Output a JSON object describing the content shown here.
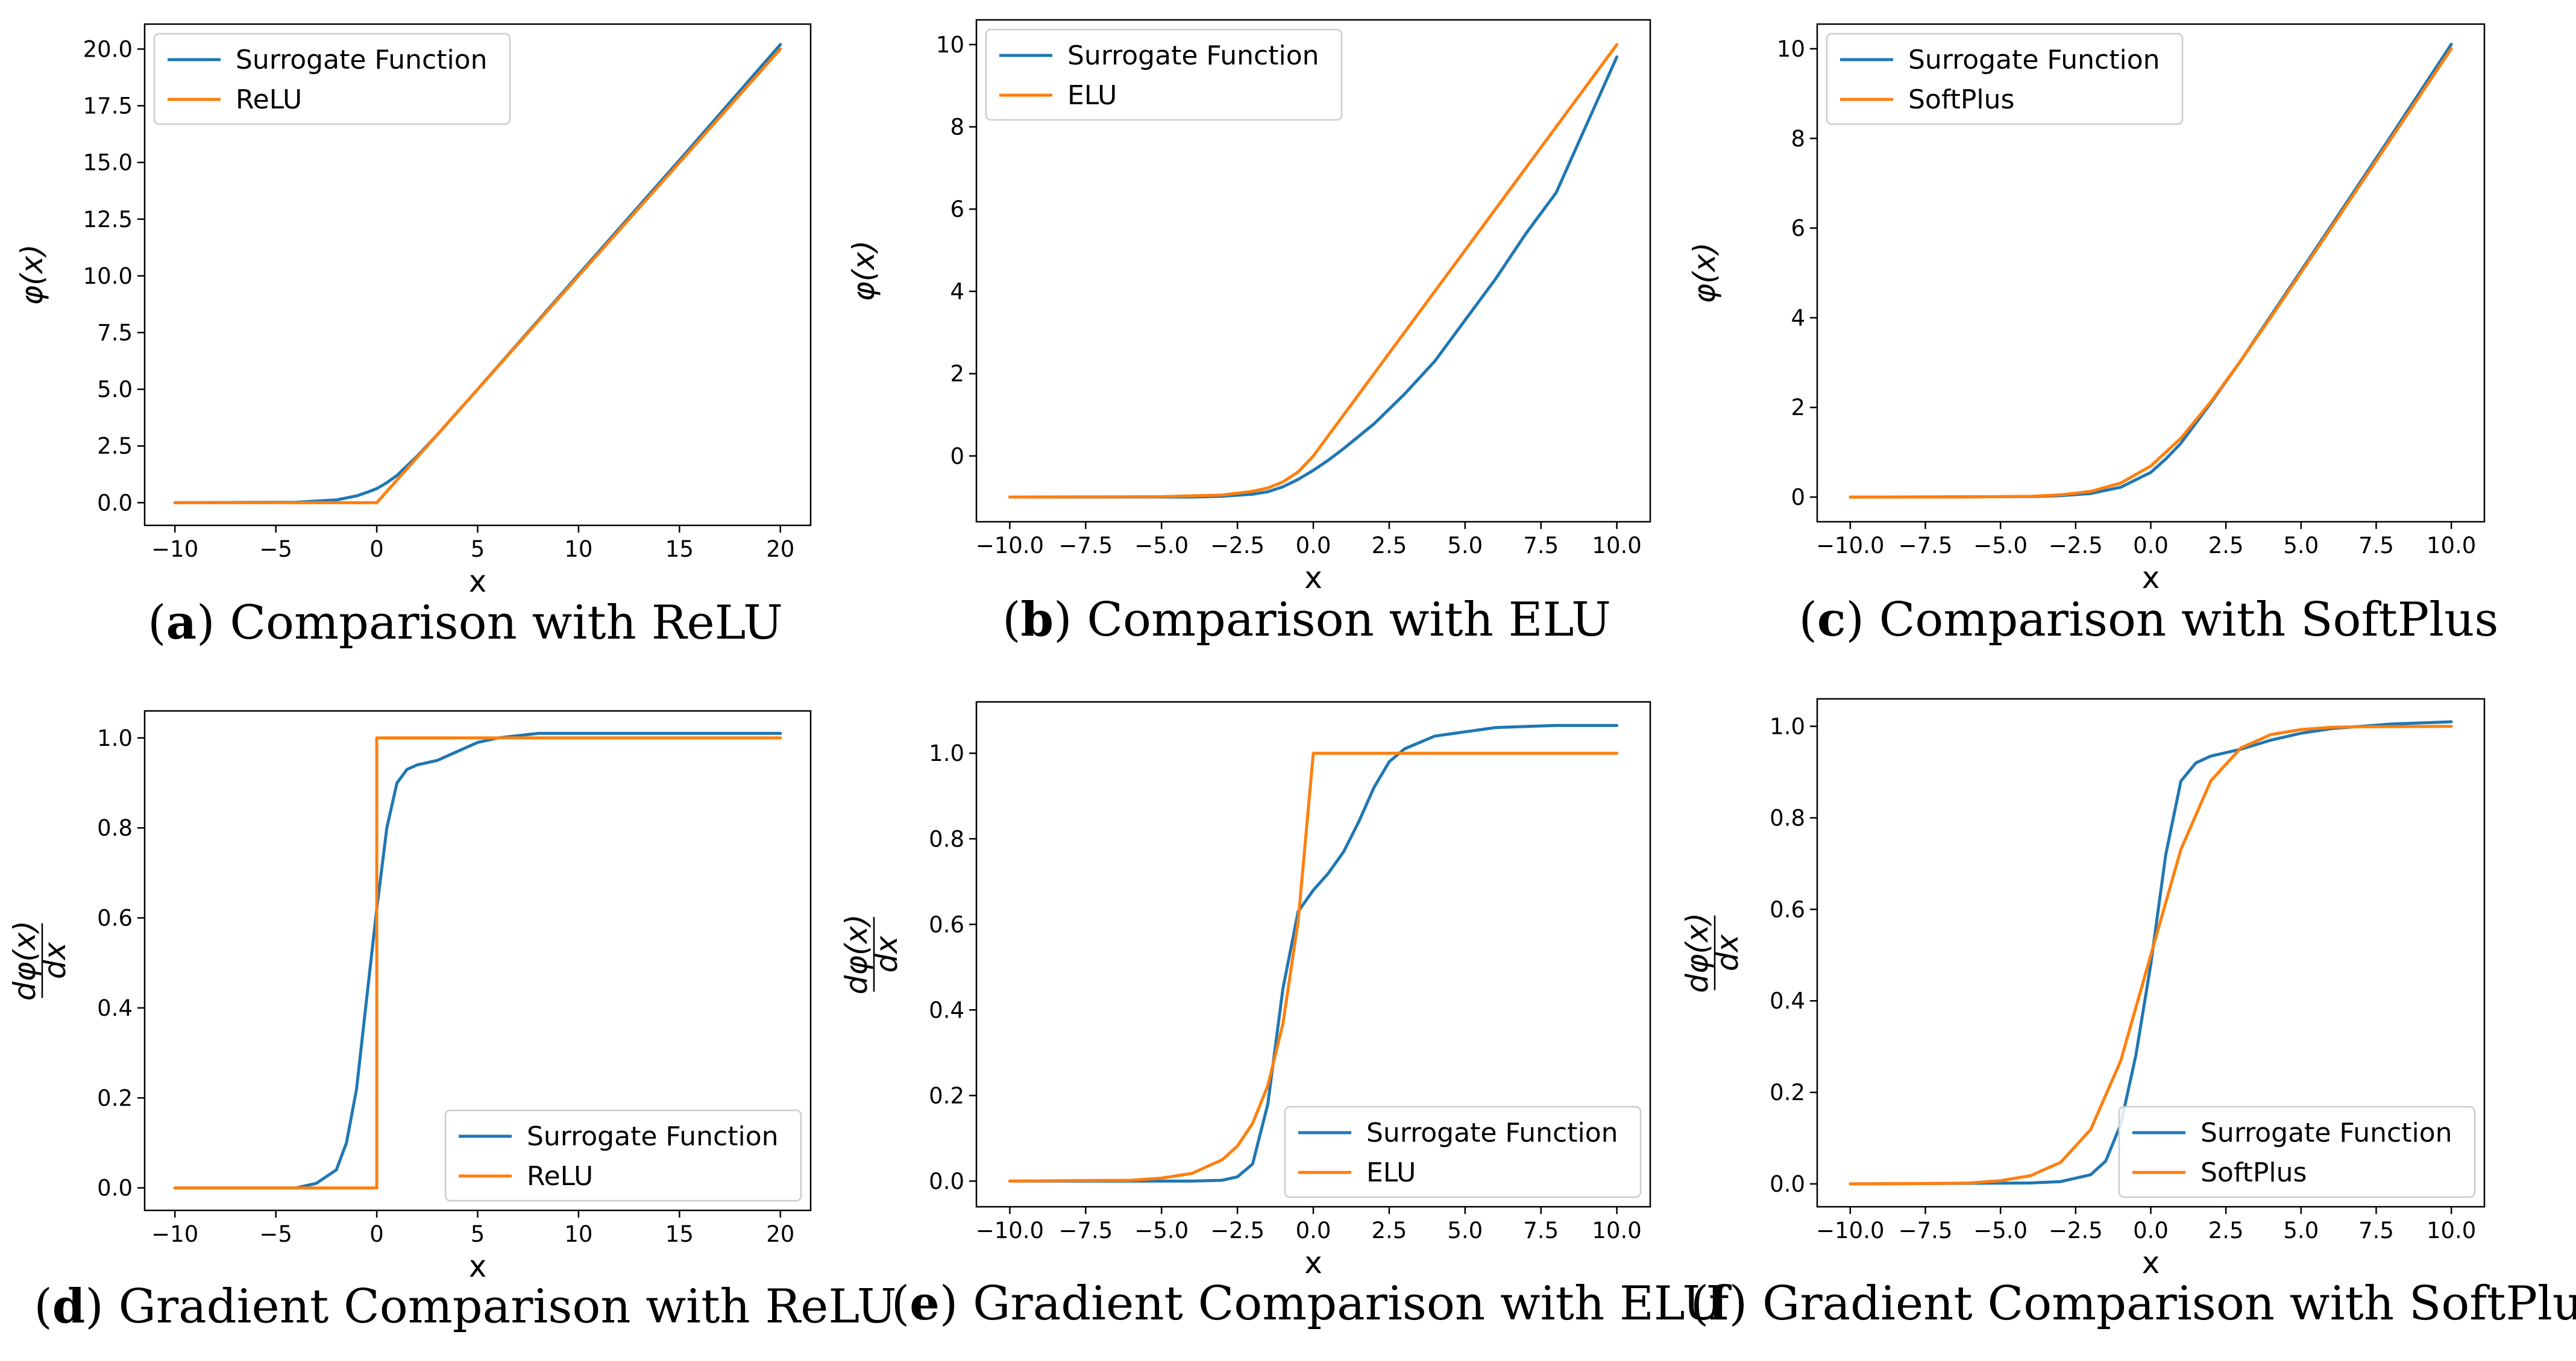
{
  "colors": {
    "surrogate": "#1f77b4",
    "reference": "#ff7f0e",
    "axis": "#000000"
  },
  "chart_data": [
    {
      "type": "line",
      "letter": "a",
      "caption": "Comparison with ReLU",
      "xlabel": "x",
      "ylabel": "φ(x)",
      "xlim": [
        -11.5,
        21.5
      ],
      "ylim": [
        -1.0,
        21.1
      ],
      "xticks": [
        -10,
        -5,
        0,
        5,
        10,
        15,
        20
      ],
      "xtick_labels": [
        "−10",
        "−5",
        "0",
        "5",
        "10",
        "15",
        "20"
      ],
      "yticks": [
        0,
        2.5,
        5,
        7.5,
        10,
        12.5,
        15,
        17.5,
        20
      ],
      "ytick_labels": [
        "0.0",
        "2.5",
        "5.0",
        "7.5",
        "10.0",
        "12.5",
        "15.0",
        "17.5",
        "20.0"
      ],
      "legend_position": "top-left",
      "series": [
        {
          "name": "Surrogate Function",
          "color_key": "surrogate",
          "x": [
            -10,
            -4,
            -2,
            -1,
            -0.5,
            0,
            0.5,
            1,
            2,
            3,
            5,
            10,
            15,
            20
          ],
          "y": [
            0,
            0.02,
            0.12,
            0.3,
            0.45,
            0.62,
            0.88,
            1.2,
            2.05,
            3.0,
            5.0,
            10.06,
            15.1,
            20.2
          ]
        },
        {
          "name": "ReLU",
          "color_key": "reference",
          "x": [
            -10,
            0,
            20
          ],
          "y": [
            0,
            0,
            20
          ]
        }
      ]
    },
    {
      "type": "line",
      "letter": "b",
      "caption": "Comparison with ELU",
      "xlabel": "x",
      "ylabel": "φ(x)",
      "xlim": [
        -11.1,
        11.1
      ],
      "ylim": [
        -1.6,
        10.6
      ],
      "xticks": [
        -10,
        -7.5,
        -5,
        -2.5,
        0,
        2.5,
        5,
        7.5,
        10
      ],
      "xtick_labels": [
        "−10.0",
        "−7.5",
        "−5.0",
        "−2.5",
        "0.0",
        "2.5",
        "5.0",
        "7.5",
        "10.0"
      ],
      "yticks": [
        0,
        2,
        4,
        6,
        8,
        10
      ],
      "ytick_labels": [
        "0",
        "2",
        "4",
        "6",
        "8",
        "10"
      ],
      "legend_position": "top-left",
      "series": [
        {
          "name": "Surrogate Function",
          "color_key": "surrogate",
          "x": [
            -10,
            -4,
            -3,
            -2,
            -1.5,
            -1,
            -0.5,
            0,
            0.5,
            1,
            2,
            3,
            4,
            5,
            6,
            7,
            8,
            10
          ],
          "y": [
            -1,
            -1,
            -0.98,
            -0.93,
            -0.87,
            -0.75,
            -0.57,
            -0.35,
            -0.1,
            0.18,
            0.78,
            1.5,
            2.3,
            3.3,
            4.3,
            5.4,
            6.4,
            9.7
          ]
        },
        {
          "name": "ELU",
          "color_key": "reference",
          "x": [
            -10,
            -5,
            -3,
            -2,
            -1.5,
            -1,
            -0.5,
            0,
            10
          ],
          "y": [
            -1,
            -0.99,
            -0.95,
            -0.86,
            -0.78,
            -0.63,
            -0.39,
            0,
            10
          ]
        }
      ]
    },
    {
      "type": "line",
      "letter": "c",
      "caption": "Comparison with SoftPlus",
      "xlabel": "x",
      "ylabel": "φ(x)",
      "xlim": [
        -11.1,
        11.1
      ],
      "ylim": [
        -0.55,
        10.55
      ],
      "xticks": [
        -10,
        -7.5,
        -5,
        -2.5,
        0,
        2.5,
        5,
        7.5,
        10
      ],
      "xtick_labels": [
        "−10.0",
        "−7.5",
        "−5.0",
        "−2.5",
        "0.0",
        "2.5",
        "5.0",
        "7.5",
        "10.0"
      ],
      "yticks": [
        0,
        2,
        4,
        6,
        8,
        10
      ],
      "ytick_labels": [
        "0",
        "2",
        "4",
        "6",
        "8",
        "10"
      ],
      "legend_position": "top-left",
      "series": [
        {
          "name": "Surrogate Function",
          "color_key": "surrogate",
          "x": [
            -10,
            -4,
            -3,
            -2,
            -1,
            0,
            0.5,
            1,
            2,
            3,
            4,
            6,
            8,
            10
          ],
          "y": [
            0,
            0.01,
            0.03,
            0.08,
            0.22,
            0.55,
            0.85,
            1.2,
            2.1,
            3.05,
            4.05,
            6.05,
            8.06,
            10.1
          ]
        },
        {
          "name": "SoftPlus",
          "color_key": "reference",
          "x": [
            -10,
            -6,
            -4,
            -3,
            -2,
            -1,
            0,
            1,
            2,
            3,
            4,
            6,
            8,
            10
          ],
          "y": [
            0,
            0.0025,
            0.018,
            0.049,
            0.127,
            0.313,
            0.693,
            1.313,
            2.127,
            3.049,
            4.018,
            6.0025,
            8.0,
            10.0
          ]
        }
      ]
    },
    {
      "type": "line",
      "letter": "d",
      "caption": "Gradient Comparison with ReLU",
      "xlabel": "x",
      "ylabel_num": "dφ(x)",
      "ylabel_den": "dx",
      "xlim": [
        -11.5,
        21.5
      ],
      "ylim": [
        -0.05,
        1.06
      ],
      "xticks": [
        -10,
        -5,
        0,
        5,
        10,
        15,
        20
      ],
      "xtick_labels": [
        "−10",
        "−5",
        "0",
        "5",
        "10",
        "15",
        "20"
      ],
      "yticks": [
        0,
        0.2,
        0.4,
        0.6,
        0.8,
        1.0
      ],
      "ytick_labels": [
        "0.0",
        "0.2",
        "0.4",
        "0.6",
        "0.8",
        "1.0"
      ],
      "legend_position": "bottom-right",
      "series": [
        {
          "name": "Surrogate Function",
          "color_key": "surrogate",
          "x": [
            -10,
            -4,
            -3,
            -2,
            -1.5,
            -1,
            -0.5,
            0,
            0.5,
            1,
            1.5,
            2,
            3,
            4,
            5,
            6,
            8,
            10,
            20
          ],
          "y": [
            0,
            0,
            0.01,
            0.04,
            0.1,
            0.22,
            0.42,
            0.62,
            0.8,
            0.9,
            0.93,
            0.94,
            0.95,
            0.97,
            0.99,
            1.0,
            1.01,
            1.01,
            1.01
          ]
        },
        {
          "name": "ReLU",
          "color_key": "reference",
          "x": [
            -10,
            0,
            0,
            20
          ],
          "y": [
            0,
            0,
            1,
            1
          ]
        }
      ]
    },
    {
      "type": "line",
      "letter": "e",
      "caption": "Gradient Comparison with ELU",
      "xlabel": "x",
      "ylabel_num": "dφ(x)",
      "ylabel_den": "dx",
      "xlim": [
        -11.1,
        11.1
      ],
      "ylim": [
        -0.06,
        1.12
      ],
      "xticks": [
        -10,
        -7.5,
        -5,
        -2.5,
        0,
        2.5,
        5,
        7.5,
        10
      ],
      "xtick_labels": [
        "−10.0",
        "−7.5",
        "−5.0",
        "−2.5",
        "0.0",
        "2.5",
        "5.0",
        "7.5",
        "10.0"
      ],
      "yticks": [
        0,
        0.2,
        0.4,
        0.6,
        0.8,
        1.0
      ],
      "ytick_labels": [
        "0.0",
        "0.2",
        "0.4",
        "0.6",
        "0.8",
        "1.0"
      ],
      "legend_position": "bottom-right",
      "series": [
        {
          "name": "Surrogate Function",
          "color_key": "surrogate",
          "x": [
            -10,
            -4,
            -3,
            -2.5,
            -2,
            -1.5,
            -1,
            -0.5,
            0,
            0.5,
            1,
            1.5,
            2,
            2.5,
            3,
            4,
            5,
            6,
            8,
            10
          ],
          "y": [
            0,
            0,
            0.002,
            0.01,
            0.04,
            0.18,
            0.45,
            0.63,
            0.68,
            0.72,
            0.77,
            0.84,
            0.92,
            0.98,
            1.01,
            1.04,
            1.05,
            1.06,
            1.065,
            1.065
          ]
        },
        {
          "name": "ELU",
          "color_key": "reference",
          "x": [
            -10,
            -6,
            -5,
            -4,
            -3,
            -2.5,
            -2,
            -1.5,
            -1,
            -0.5,
            0,
            0,
            10
          ],
          "y": [
            0,
            0.002,
            0.007,
            0.018,
            0.05,
            0.082,
            0.135,
            0.223,
            0.368,
            0.607,
            1.0,
            1.0,
            1.0
          ]
        }
      ]
    },
    {
      "type": "line",
      "letter": "f",
      "caption": "Gradient Comparison with SoftPlus",
      "xlabel": "x",
      "ylabel_num": "dφ(x)",
      "ylabel_den": "dx",
      "xlim": [
        -11.1,
        11.1
      ],
      "ylim": [
        -0.05,
        1.06
      ],
      "xticks": [
        -10,
        -7.5,
        -5,
        -2.5,
        0,
        2.5,
        5,
        7.5,
        10
      ],
      "xtick_labels": [
        "−10.0",
        "−7.5",
        "−5.0",
        "−2.5",
        "0.0",
        "2.5",
        "5.0",
        "7.5",
        "10.0"
      ],
      "yticks": [
        0,
        0.2,
        0.4,
        0.6,
        0.8,
        1.0
      ],
      "ytick_labels": [
        "0.0",
        "0.2",
        "0.4",
        "0.6",
        "0.8",
        "1.0"
      ],
      "legend_position": "bottom-right",
      "series": [
        {
          "name": "Surrogate Function",
          "color_key": "surrogate",
          "x": [
            -10,
            -4,
            -3,
            -2,
            -1.5,
            -1,
            -0.5,
            0,
            0.5,
            1,
            1.5,
            2,
            3,
            4,
            5,
            6,
            8,
            10
          ],
          "y": [
            0,
            0.002,
            0.005,
            0.02,
            0.05,
            0.13,
            0.28,
            0.48,
            0.72,
            0.88,
            0.92,
            0.935,
            0.95,
            0.97,
            0.985,
            0.995,
            1.005,
            1.01
          ]
        },
        {
          "name": "SoftPlus",
          "color_key": "reference",
          "x": [
            -10,
            -7,
            -6,
            -5,
            -4,
            -3,
            -2,
            -1,
            0,
            1,
            2,
            3,
            4,
            5,
            6,
            7,
            10
          ],
          "y": [
            0,
            0.001,
            0.002,
            0.007,
            0.018,
            0.047,
            0.119,
            0.269,
            0.5,
            0.731,
            0.881,
            0.953,
            0.982,
            0.993,
            0.998,
            0.999,
            1.0
          ]
        }
      ]
    }
  ]
}
